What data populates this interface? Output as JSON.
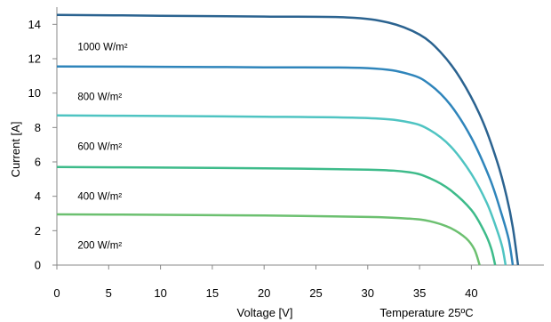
{
  "chart_data": {
    "type": "line",
    "title": "",
    "xlabel": "Voltage [V]",
    "ylabel": "Current [A]",
    "annotation": "Temperature 25ºC",
    "xlim": [
      0,
      47
    ],
    "ylim": [
      0,
      15
    ],
    "x_ticks": [
      0,
      5,
      10,
      15,
      20,
      25,
      30,
      35,
      40
    ],
    "y_ticks": [
      0,
      2,
      4,
      6,
      8,
      10,
      12,
      14
    ],
    "grid": false,
    "series": [
      {
        "name": "200 W/m²",
        "color": "#6cc070",
        "points": [
          [
            0,
            2.95
          ],
          [
            10,
            2.92
          ],
          [
            20,
            2.88
          ],
          [
            30,
            2.8
          ],
          [
            34,
            2.7
          ],
          [
            36,
            2.55
          ],
          [
            38,
            2.15
          ],
          [
            39.5,
            1.55
          ],
          [
            40.3,
            0.9
          ],
          [
            40.8,
            0.0
          ]
        ]
      },
      {
        "name": "400 W/m²",
        "color": "#3dbb8a",
        "points": [
          [
            0,
            5.7
          ],
          [
            10,
            5.67
          ],
          [
            20,
            5.63
          ],
          [
            30,
            5.55
          ],
          [
            34,
            5.4
          ],
          [
            36,
            5.05
          ],
          [
            38,
            4.35
          ],
          [
            40,
            3.2
          ],
          [
            41.2,
            2.0
          ],
          [
            41.9,
            1.0
          ],
          [
            42.3,
            0.0
          ]
        ]
      },
      {
        "name": "600 W/m²",
        "color": "#4fc4c2",
        "points": [
          [
            0,
            8.7
          ],
          [
            10,
            8.67
          ],
          [
            20,
            8.63
          ],
          [
            30,
            8.55
          ],
          [
            34,
            8.3
          ],
          [
            36,
            7.85
          ],
          [
            38,
            6.9
          ],
          [
            40,
            5.3
          ],
          [
            41.5,
            3.6
          ],
          [
            42.5,
            2.0
          ],
          [
            43.0,
            1.0
          ],
          [
            43.3,
            0.0
          ]
        ]
      },
      {
        "name": "800 W/m²",
        "color": "#2f85bb",
        "points": [
          [
            0,
            11.55
          ],
          [
            10,
            11.53
          ],
          [
            20,
            11.5
          ],
          [
            30,
            11.45
          ],
          [
            34,
            11.1
          ],
          [
            36,
            10.5
          ],
          [
            38,
            9.3
          ],
          [
            40,
            7.4
          ],
          [
            41.8,
            5.0
          ],
          [
            42.9,
            3.0
          ],
          [
            43.6,
            1.5
          ],
          [
            44.0,
            0.0
          ]
        ]
      },
      {
        "name": "1000 W/m²",
        "color": "#2b6390",
        "points": [
          [
            0,
            14.55
          ],
          [
            10,
            14.5
          ],
          [
            20,
            14.45
          ],
          [
            28,
            14.4
          ],
          [
            32,
            14.1
          ],
          [
            35,
            13.4
          ],
          [
            37,
            12.4
          ],
          [
            39,
            10.8
          ],
          [
            41,
            8.5
          ],
          [
            42.5,
            6.0
          ],
          [
            43.4,
            4.0
          ],
          [
            44.0,
            2.2
          ],
          [
            44.5,
            0.0
          ]
        ]
      }
    ]
  },
  "labels": [
    {
      "text": "1000 W/m²",
      "x": 2,
      "y": 12.5
    },
    {
      "text": "800 W/m²",
      "x": 2,
      "y": 9.6
    },
    {
      "text": "600 W/m²",
      "x": 2,
      "y": 6.7
    },
    {
      "text": "400 W/m²",
      "x": 2,
      "y": 3.8
    },
    {
      "text": "200 W/m²",
      "x": 2,
      "y": 0.95
    }
  ]
}
